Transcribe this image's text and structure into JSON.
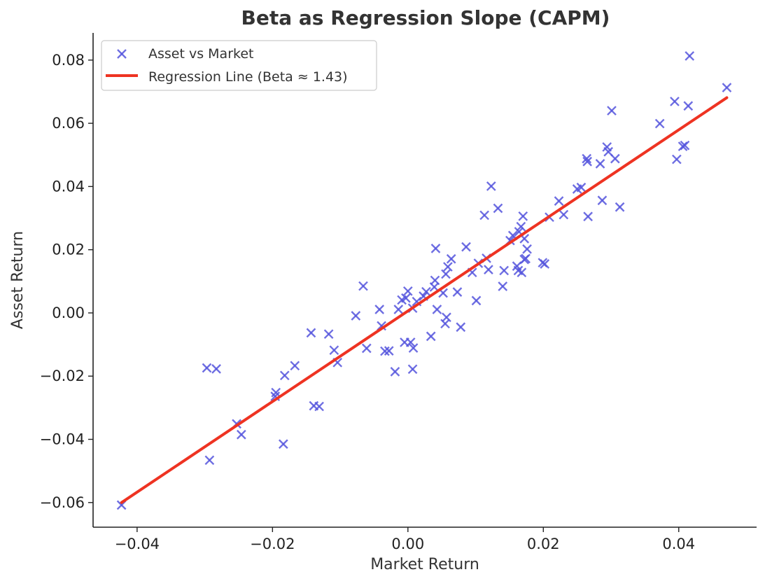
{
  "chart_data": {
    "type": "scatter",
    "title": "Beta as Regression Slope (CAPM)",
    "xlabel": "Market Return",
    "ylabel": "Asset Return",
    "xlim": [
      -0.0465,
      0.0515
    ],
    "ylim": [
      -0.0678,
      0.0886
    ],
    "xticks": [
      -0.04,
      -0.02,
      0.0,
      0.02,
      0.04
    ],
    "xtick_labels": [
      "−0.04",
      "−0.02",
      "0.00",
      "0.02",
      "0.04"
    ],
    "yticks": [
      -0.06,
      -0.04,
      -0.02,
      0.0,
      0.02,
      0.04,
      0.06,
      0.08
    ],
    "ytick_labels": [
      "−0.06",
      "−0.04",
      "−0.02",
      "0.00",
      "0.02",
      "0.04",
      "0.06",
      "0.08"
    ],
    "legend_position": "top-left",
    "series": [
      {
        "name": "Asset vs Market",
        "type": "scatter",
        "marker": "x",
        "color": "#5555dd",
        "points": [
          [
            -0.0423,
            -0.0608
          ],
          [
            -0.0293,
            -0.0466
          ],
          [
            -0.0297,
            -0.0174
          ],
          [
            -0.0283,
            -0.0177
          ],
          [
            -0.0253,
            -0.0351
          ],
          [
            -0.0246,
            -0.0385
          ],
          [
            -0.0184,
            -0.0415
          ],
          [
            -0.0196,
            -0.0264
          ],
          [
            -0.0195,
            -0.0252
          ],
          [
            -0.0182,
            -0.0198
          ],
          [
            -0.0167,
            -0.0167
          ],
          [
            -0.0139,
            -0.0294
          ],
          [
            -0.0131,
            -0.0296
          ],
          [
            -0.0143,
            -0.0063
          ],
          [
            -0.0117,
            -0.0067
          ],
          [
            -0.0109,
            -0.0118
          ],
          [
            -0.0104,
            -0.0157
          ],
          [
            -0.0077,
            -0.0009
          ],
          [
            -0.0066,
            0.0085
          ],
          [
            -0.0061,
            -0.0112
          ],
          [
            -0.0042,
            0.0011
          ],
          [
            -0.0039,
            -0.0041
          ],
          [
            -0.0034,
            -0.0121
          ],
          [
            -0.0028,
            -0.012
          ],
          [
            -0.0019,
            -0.0186
          ],
          [
            -0.0014,
            0.0011
          ],
          [
            -0.0009,
            0.0041
          ],
          [
            -0.0005,
            -0.0093
          ],
          [
            -0.0003,
            0.0047
          ],
          [
            0.0,
            0.0069
          ],
          [
            0.0004,
            -0.0093
          ],
          [
            0.0007,
            0.0015
          ],
          [
            0.0007,
            -0.0178
          ],
          [
            0.0008,
            -0.0111
          ],
          [
            0.0013,
            0.0036
          ],
          [
            0.0023,
            0.0053
          ],
          [
            0.0027,
            0.0067
          ],
          [
            0.0034,
            -0.0074
          ],
          [
            0.0039,
            0.0082
          ],
          [
            0.004,
            0.0103
          ],
          [
            0.0041,
            0.0204
          ],
          [
            0.0043,
            0.0011
          ],
          [
            0.0052,
            0.0063
          ],
          [
            0.0055,
            -0.0034
          ],
          [
            0.0057,
            -0.0014
          ],
          [
            0.0056,
            0.0123
          ],
          [
            0.0059,
            0.0146
          ],
          [
            0.0064,
            0.0171
          ],
          [
            0.0073,
            0.0066
          ],
          [
            0.0078,
            -0.0045
          ],
          [
            0.0086,
            0.0209
          ],
          [
            0.0095,
            0.0128
          ],
          [
            0.0101,
            0.0039
          ],
          [
            0.0104,
            0.0157
          ],
          [
            0.0113,
            0.0309
          ],
          [
            0.0116,
            0.0173
          ],
          [
            0.0119,
            0.0137
          ],
          [
            0.0123,
            0.0401
          ],
          [
            0.0133,
            0.0331
          ],
          [
            0.014,
            0.0084
          ],
          [
            0.0142,
            0.0134
          ],
          [
            0.0151,
            0.0229
          ],
          [
            0.0155,
            0.0245
          ],
          [
            0.0161,
            0.0148
          ],
          [
            0.0163,
            0.0134
          ],
          [
            0.0164,
            0.0257
          ],
          [
            0.0168,
            0.0128
          ],
          [
            0.0167,
            0.0273
          ],
          [
            0.017,
            0.0306
          ],
          [
            0.0172,
            0.0235
          ],
          [
            0.0172,
            0.0169
          ],
          [
            0.0174,
            0.0172
          ],
          [
            0.0176,
            0.0202
          ],
          [
            0.0199,
            0.0159
          ],
          [
            0.0202,
            0.0155
          ],
          [
            0.0209,
            0.0303
          ],
          [
            0.0223,
            0.0354
          ],
          [
            0.023,
            0.0311
          ],
          [
            0.025,
            0.0392
          ],
          [
            0.0256,
            0.0397
          ],
          [
            0.0264,
            0.0488
          ],
          [
            0.0265,
            0.0479
          ],
          [
            0.0266,
            0.0305
          ],
          [
            0.0284,
            0.0472
          ],
          [
            0.0287,
            0.0356
          ],
          [
            0.0294,
            0.0525
          ],
          [
            0.0296,
            0.051
          ],
          [
            0.0301,
            0.064
          ],
          [
            0.0306,
            0.0488
          ],
          [
            0.0313,
            0.0335
          ],
          [
            0.0372,
            0.0599
          ],
          [
            0.0394,
            0.0669
          ],
          [
            0.0397,
            0.0486
          ],
          [
            0.0406,
            0.0527
          ],
          [
            0.0409,
            0.053
          ],
          [
            0.0414,
            0.0655
          ],
          [
            0.0416,
            0.0813
          ],
          [
            0.0471,
            0.0713
          ]
        ]
      },
      {
        "name": "Regression Line (Beta ≈ 1.43)",
        "type": "line",
        "color": "#ee3322",
        "points": [
          [
            -0.0423,
            -0.06
          ],
          [
            0.0471,
            0.0681
          ]
        ]
      }
    ]
  }
}
